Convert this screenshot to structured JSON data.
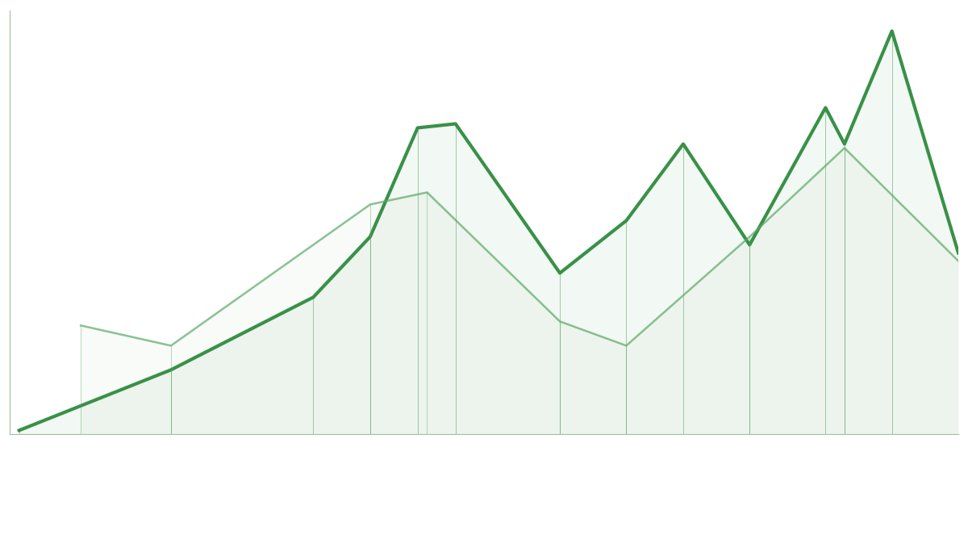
{
  "chart_data": {
    "type": "line",
    "series": [
      {
        "color": "#2e8b3e",
        "line_style": "solid",
        "x": [
          1,
          17,
          32,
          38,
          43,
          47,
          58,
          65,
          71,
          78,
          86,
          88,
          93,
          100
        ],
        "values": [
          1,
          16,
          34,
          49,
          76,
          77,
          40,
          53,
          72,
          47,
          81,
          72,
          100,
          45
        ]
      },
      {
        "color": "#5aa864",
        "line_style": "solid",
        "x": [
          7.5,
          17,
          38,
          44,
          58,
          65,
          78,
          88,
          100
        ],
        "values": [
          27,
          22,
          57,
          60,
          28,
          22,
          49,
          71,
          43
        ]
      }
    ],
    "xlim": [
      0,
      100
    ],
    "ylim": [
      0,
      105
    ],
    "tick_labels": false,
    "grid": false
  }
}
